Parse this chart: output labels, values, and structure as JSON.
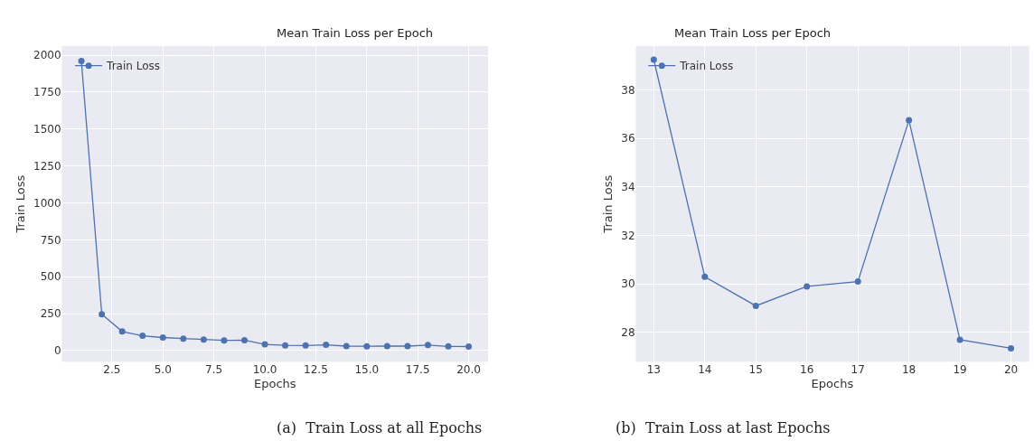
{
  "chart_data": [
    {
      "type": "line",
      "title": "Mean Train Loss per Epoch",
      "xlabel": "Epochs",
      "ylabel": "Train Loss",
      "x": [
        1,
        2,
        3,
        4,
        5,
        6,
        7,
        8,
        9,
        10,
        11,
        12,
        13,
        14,
        15,
        16,
        17,
        18,
        19,
        20
      ],
      "series": [
        {
          "name": "Train Loss",
          "color": "#4c72b0",
          "values": [
            1960,
            246,
            129,
            100,
            88,
            81,
            75,
            69,
            70,
            42,
            35,
            34,
            39,
            30,
            29,
            30,
            30,
            37,
            28,
            27
          ]
        }
      ],
      "xlim": [
        0.05,
        20.95
      ],
      "ylim": [
        -75,
        2060
      ],
      "xticks": [
        2.5,
        {
          "value": 5,
          "label": "5.0"
        },
        7.5,
        {
          "value": 10,
          "label": "10.0"
        },
        12.5,
        {
          "value": 15,
          "label": "15.0"
        },
        17.5,
        {
          "value": 20,
          "label": "20.0"
        }
      ],
      "yticks": [
        0,
        250,
        500,
        750,
        1000,
        1250,
        1500,
        1750,
        2000
      ],
      "grid": true,
      "legend": "top left",
      "marker": "circle",
      "line_style": "solid",
      "annotations": [
        "(a)  Train Loss at all Epochs"
      ]
    },
    {
      "type": "line",
      "title": "Mean Train Loss per Epoch",
      "xlabel": "Epochs",
      "ylabel": "Train Loss",
      "x": [
        13,
        14,
        15,
        16,
        17,
        18,
        19,
        20
      ],
      "series": [
        {
          "name": "Train Loss",
          "color": "#4c72b0",
          "values": [
            39.25,
            30.3,
            29.1,
            29.9,
            30.1,
            36.75,
            27.7,
            27.35
          ]
        }
      ],
      "xlim": [
        12.65,
        20.35
      ],
      "ylim": [
        26.8,
        39.8
      ],
      "xticks": [
        13,
        14,
        15,
        16,
        17,
        18,
        19,
        20
      ],
      "yticks": [
        28,
        30,
        32,
        34,
        36,
        38
      ],
      "grid": true,
      "legend": "top left",
      "marker": "circle",
      "line_style": "solid",
      "annotations": [
        "(b)  Train Loss at last Epochs"
      ]
    }
  ]
}
